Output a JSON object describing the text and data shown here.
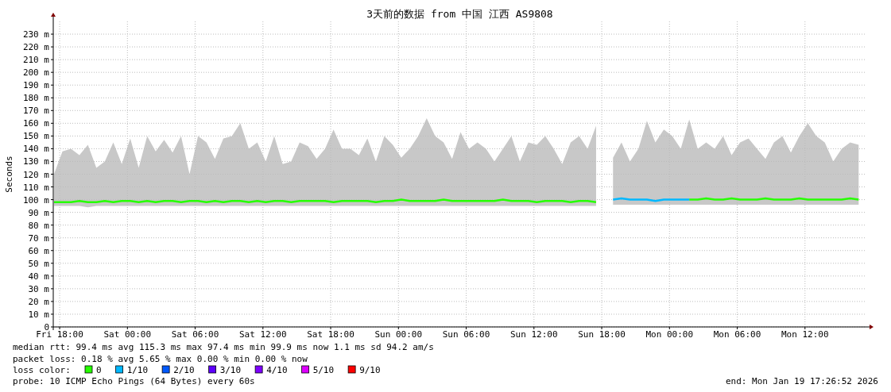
{
  "chart_data": {
    "type": "line",
    "title": "3天前的数据 from 中国 江西 AS9808",
    "ylabel": "Seconds",
    "x": [
      "2026-01-16T17:30",
      "2026-01-16T18:15",
      "2026-01-16T19:00",
      "2026-01-16T19:45",
      "2026-01-16T20:30",
      "2026-01-16T21:15",
      "2026-01-16T22:00",
      "2026-01-16T22:45",
      "2026-01-16T23:30",
      "2026-01-17T00:15",
      "2026-01-17T01:00",
      "2026-01-17T01:45",
      "2026-01-17T02:30",
      "2026-01-17T03:15",
      "2026-01-17T04:00",
      "2026-01-17T04:45",
      "2026-01-17T05:30",
      "2026-01-17T06:15",
      "2026-01-17T07:00",
      "2026-01-17T07:45",
      "2026-01-17T08:30",
      "2026-01-17T09:15",
      "2026-01-17T10:00",
      "2026-01-17T10:45",
      "2026-01-17T11:30",
      "2026-01-17T12:15",
      "2026-01-17T13:00",
      "2026-01-17T13:45",
      "2026-01-17T14:30",
      "2026-01-17T15:15",
      "2026-01-17T16:00",
      "2026-01-17T16:45",
      "2026-01-17T17:30",
      "2026-01-17T18:15",
      "2026-01-17T19:00",
      "2026-01-17T19:45",
      "2026-01-17T20:30",
      "2026-01-17T21:15",
      "2026-01-17T22:00",
      "2026-01-17T22:45",
      "2026-01-17T23:30",
      "2026-01-18T00:15",
      "2026-01-18T01:00",
      "2026-01-18T01:45",
      "2026-01-18T02:30",
      "2026-01-18T03:15",
      "2026-01-18T04:00",
      "2026-01-18T04:45",
      "2026-01-18T05:30",
      "2026-01-18T06:15",
      "2026-01-18T07:00",
      "2026-01-18T07:45",
      "2026-01-18T08:30",
      "2026-01-18T09:15",
      "2026-01-18T10:00",
      "2026-01-18T10:45",
      "2026-01-18T11:30",
      "2026-01-18T12:15",
      "2026-01-18T13:00",
      "2026-01-18T13:45",
      "2026-01-18T14:30",
      "2026-01-18T15:15",
      "2026-01-18T16:00",
      "2026-01-18T16:45",
      "2026-01-18T17:30",
      "2026-01-18T19:00",
      "2026-01-18T19:45",
      "2026-01-18T20:30",
      "2026-01-18T21:15",
      "2026-01-18T22:00",
      "2026-01-18T22:45",
      "2026-01-18T23:30",
      "2026-01-19T00:15",
      "2026-01-19T01:00",
      "2026-01-19T01:45",
      "2026-01-19T02:30",
      "2026-01-19T03:15",
      "2026-01-19T04:00",
      "2026-01-19T04:45",
      "2026-01-19T05:30",
      "2026-01-19T06:15",
      "2026-01-19T07:00",
      "2026-01-19T07:45",
      "2026-01-19T08:30",
      "2026-01-19T09:15",
      "2026-01-19T10:00",
      "2026-01-19T10:45",
      "2026-01-19T11:30",
      "2026-01-19T12:15",
      "2026-01-19T13:00",
      "2026-01-19T13:45",
      "2026-01-19T14:30",
      "2026-01-19T15:15",
      "2026-01-19T16:00",
      "2026-01-19T16:45"
    ],
    "series": [
      {
        "name": "0",
        "color": "#26ff00",
        "values": [
          98,
          98,
          98,
          99,
          98,
          98,
          99,
          98,
          99,
          99,
          98,
          99,
          98,
          99,
          99,
          98,
          99,
          99,
          98,
          99,
          98,
          99,
          99,
          98,
          99,
          98,
          99,
          99,
          98,
          99,
          99,
          99,
          99,
          98,
          99,
          99,
          99,
          99,
          98,
          99,
          99,
          100,
          99,
          99,
          99,
          99,
          100,
          99,
          99,
          99,
          99,
          99,
          99,
          100,
          99,
          99,
          99,
          98,
          99,
          99,
          99,
          98,
          99,
          99,
          98,
          null,
          null,
          null,
          null,
          null,
          null,
          null,
          null,
          null,
          100,
          100,
          101,
          100,
          100,
          101,
          100,
          100,
          100,
          101,
          100,
          100,
          100,
          101,
          100,
          100,
          100,
          100,
          100,
          101,
          100
        ],
        "lower": [
          95,
          95,
          95,
          95,
          94,
          95,
          95,
          95,
          95,
          95,
          95,
          95,
          95,
          95,
          95,
          95,
          95,
          95,
          95,
          95,
          95,
          95,
          95,
          95,
          95,
          95,
          95,
          95,
          95,
          95,
          95,
          95,
          95,
          95,
          95,
          95,
          95,
          95,
          95,
          95,
          95,
          95,
          95,
          95,
          95,
          95,
          95,
          95,
          95,
          95,
          95,
          95,
          95,
          95,
          95,
          95,
          95,
          95,
          95,
          95,
          95,
          95,
          95,
          95,
          95,
          96,
          96,
          96,
          96,
          96,
          96,
          96,
          96,
          96,
          96,
          96,
          96,
          96,
          96,
          96,
          96,
          96,
          96,
          96,
          96,
          96,
          96,
          96,
          96,
          96,
          96,
          96,
          96,
          96,
          96
        ],
        "upper": [
          120,
          138,
          140,
          135,
          143,
          125,
          130,
          145,
          128,
          148,
          125,
          150,
          138,
          147,
          137,
          150,
          120,
          150,
          145,
          132,
          148,
          150,
          160,
          140,
          145,
          130,
          150,
          128,
          130,
          145,
          142,
          132,
          140,
          155,
          140,
          140,
          135,
          148,
          130,
          150,
          143,
          133,
          140,
          150,
          164,
          150,
          145,
          132,
          153,
          140,
          145,
          140,
          130,
          140,
          150,
          130,
          145,
          143,
          150,
          140,
          128,
          145,
          150,
          140,
          158,
          133,
          145,
          130,
          140,
          162,
          145,
          155,
          150,
          140,
          163,
          140,
          145,
          140,
          150,
          135,
          145,
          148,
          140,
          132,
          145,
          150,
          137,
          150,
          160,
          150,
          145,
          130,
          140,
          145,
          143
        ]
      },
      {
        "name": "1/10",
        "color": "#00b8ff",
        "values": [
          null,
          null,
          null,
          null,
          null,
          null,
          null,
          null,
          null,
          null,
          null,
          null,
          null,
          null,
          null,
          null,
          null,
          null,
          null,
          null,
          null,
          null,
          null,
          null,
          null,
          null,
          null,
          null,
          null,
          null,
          null,
          null,
          null,
          null,
          null,
          null,
          null,
          null,
          null,
          null,
          null,
          null,
          null,
          null,
          null,
          null,
          null,
          null,
          null,
          null,
          null,
          null,
          null,
          null,
          null,
          null,
          null,
          null,
          null,
          null,
          null,
          null,
          null,
          null,
          null,
          100,
          101,
          100,
          100,
          100,
          99,
          100,
          100,
          100,
          100,
          null,
          null,
          null,
          null,
          null,
          null,
          null,
          null,
          null,
          null,
          null,
          null,
          null,
          null,
          null,
          null,
          null,
          null,
          null,
          null
        ]
      },
      {
        "name": "2/10",
        "color": "#0059ff",
        "values": [
          null,
          null,
          null,
          null,
          null,
          null,
          null,
          null,
          null,
          null,
          null,
          null,
          null,
          null,
          null,
          null,
          null,
          null,
          null,
          null,
          null,
          null,
          null,
          null,
          null,
          null,
          null,
          null,
          null,
          null,
          null,
          null,
          null,
          null,
          null,
          null,
          null,
          null,
          null,
          null,
          null,
          null,
          null,
          null,
          null,
          null,
          null,
          null,
          null,
          null,
          null,
          null,
          null,
          null,
          null,
          null,
          null,
          null,
          null,
          null,
          null,
          null,
          null,
          null,
          null,
          null,
          null,
          null,
          null,
          null,
          null,
          null,
          null,
          null,
          null,
          null,
          null,
          null,
          null,
          null,
          null,
          null,
          null,
          null,
          null,
          null,
          null,
          null,
          null,
          null,
          null,
          null,
          null,
          null,
          null
        ]
      },
      {
        "name": "3/10",
        "color": "#5e00ff",
        "values": [
          null,
          null,
          null,
          null,
          null,
          null,
          null,
          null,
          null,
          null,
          null,
          null,
          null,
          null,
          null,
          null,
          null,
          null,
          null,
          null,
          null,
          null,
          null,
          null,
          null,
          null,
          null,
          null,
          null,
          null,
          null,
          null,
          null,
          null,
          null,
          null,
          null,
          null,
          null,
          null,
          null,
          null,
          null,
          null,
          null,
          null,
          null,
          null,
          null,
          null,
          null,
          null,
          null,
          null,
          null,
          null,
          null,
          null,
          null,
          null,
          null,
          null,
          null,
          null,
          null,
          null,
          null,
          null,
          null,
          null,
          null,
          null,
          null,
          null,
          null,
          null,
          null,
          null,
          null,
          null,
          null,
          null,
          null,
          null,
          null,
          null,
          null,
          null,
          null,
          null,
          null,
          null,
          null,
          null,
          null
        ]
      },
      {
        "name": "4/10",
        "color": "#7e00ff",
        "values": [
          null,
          null,
          null,
          null,
          null,
          null,
          null,
          null,
          null,
          null,
          null,
          null,
          null,
          null,
          null,
          null,
          null,
          null,
          null,
          null,
          null,
          null,
          null,
          null,
          null,
          null,
          null,
          null,
          null,
          null,
          null,
          null,
          null,
          null,
          null,
          null,
          null,
          null,
          null,
          null,
          null,
          null,
          null,
          null,
          null,
          null,
          null,
          null,
          null,
          null,
          null,
          null,
          null,
          null,
          null,
          null,
          null,
          null,
          null,
          null,
          null,
          null,
          null,
          null,
          null,
          null,
          null,
          null,
          null,
          null,
          null,
          null,
          null,
          null,
          null,
          null,
          null,
          null,
          null,
          null,
          null,
          null,
          null,
          null,
          null,
          null,
          null,
          null,
          null,
          null,
          null,
          null,
          null,
          null,
          null
        ]
      },
      {
        "name": "5/10",
        "color": "#dd00ff",
        "values": [
          null,
          null,
          null,
          null,
          null,
          null,
          null,
          null,
          null,
          null,
          null,
          null,
          null,
          null,
          null,
          null,
          null,
          null,
          null,
          null,
          null,
          null,
          null,
          null,
          null,
          null,
          null,
          null,
          null,
          null,
          null,
          null,
          null,
          null,
          null,
          null,
          null,
          null,
          null,
          null,
          null,
          null,
          null,
          null,
          null,
          null,
          null,
          null,
          null,
          null,
          null,
          null,
          null,
          null,
          null,
          null,
          null,
          null,
          null,
          null,
          null,
          null,
          null,
          null,
          null,
          null,
          null,
          null,
          null,
          null,
          null,
          null,
          null,
          null,
          null,
          null,
          null,
          null,
          null,
          null,
          null,
          null,
          null,
          null,
          null,
          null,
          null,
          null,
          null,
          null,
          null,
          null,
          null,
          null,
          null
        ]
      },
      {
        "name": "9/10",
        "color": "#ff0000",
        "values": [
          null,
          null,
          null,
          null,
          null,
          null,
          null,
          null,
          null,
          null,
          null,
          null,
          null,
          null,
          null,
          null,
          null,
          null,
          null,
          null,
          null,
          null,
          null,
          null,
          null,
          null,
          null,
          null,
          null,
          null,
          null,
          null,
          null,
          null,
          null,
          null,
          null,
          null,
          null,
          null,
          null,
          null,
          null,
          null,
          null,
          null,
          null,
          null,
          null,
          null,
          null,
          null,
          null,
          null,
          null,
          null,
          null,
          null,
          null,
          null,
          null,
          null,
          null,
          null,
          null,
          null,
          null,
          null,
          null,
          null,
          null,
          null,
          null,
          null,
          null,
          null,
          null,
          null,
          null,
          null,
          null,
          null,
          null,
          null,
          null,
          null,
          null,
          null,
          null,
          null,
          null,
          null,
          null,
          null,
          null
        ]
      }
    ],
    "xlim": [
      "2026-01-16T17:26",
      "2026-01-19T17:26"
    ],
    "xticks": [
      {
        "value": "2026-01-16T18:00",
        "label": "Fri 18:00"
      },
      {
        "value": "2026-01-17T00:00",
        "label": "Sat 00:00"
      },
      {
        "value": "2026-01-17T06:00",
        "label": "Sat 06:00"
      },
      {
        "value": "2026-01-17T12:00",
        "label": "Sat 12:00"
      },
      {
        "value": "2026-01-17T18:00",
        "label": "Sat 18:00"
      },
      {
        "value": "2026-01-18T00:00",
        "label": "Sun 00:00"
      },
      {
        "value": "2026-01-18T06:00",
        "label": "Sun 06:00"
      },
      {
        "value": "2026-01-18T12:00",
        "label": "Sun 12:00"
      },
      {
        "value": "2026-01-18T18:00",
        "label": "Sun 18:00"
      },
      {
        "value": "2026-01-19T00:00",
        "label": "Mon 00:00"
      },
      {
        "value": "2026-01-19T06:00",
        "label": "Mon 06:00"
      },
      {
        "value": "2026-01-19T12:00",
        "label": "Mon 12:00"
      }
    ],
    "ylim": [
      0,
      240
    ],
    "yticks": [
      0,
      {
        "value": 10,
        "label": "10 m"
      },
      {
        "value": 20,
        "label": "20 m"
      },
      {
        "value": 30,
        "label": "30 m"
      },
      {
        "value": 40,
        "label": "40 m"
      },
      {
        "value": 50,
        "label": "50 m"
      },
      {
        "value": 60,
        "label": "60 m"
      },
      {
        "value": 70,
        "label": "70 m"
      },
      {
        "value": 80,
        "label": "80 m"
      },
      {
        "value": 90,
        "label": "90 m"
      },
      {
        "value": 100,
        "label": "100 m"
      },
      {
        "value": 110,
        "label": "110 m"
      },
      {
        "value": 120,
        "label": "120 m"
      },
      {
        "value": 130,
        "label": "130 m"
      },
      {
        "value": 140,
        "label": "140 m"
      },
      {
        "value": 150,
        "label": "150 m"
      },
      {
        "value": 160,
        "label": "160 m"
      },
      {
        "value": 170,
        "label": "170 m"
      },
      {
        "value": 180,
        "label": "180 m"
      },
      {
        "value": 190,
        "label": "190 m"
      },
      {
        "value": 200,
        "label": "200 m"
      },
      {
        "value": 210,
        "label": "210 m"
      },
      {
        "value": 220,
        "label": "220 m"
      },
      {
        "value": 230,
        "label": "230 m"
      }
    ],
    "grid": true,
    "legend": "bottom",
    "legend_title": "loss color:",
    "marker": "none",
    "line_style": "solid",
    "annotations": [
      "median rtt:  99.4 ms avg  115.3 ms max  97.4 ms min  99.9 ms now  1.1 ms sd  94.2   am/s",
      "packet loss: 0.18 % avg  5.65 % max  0.00 % min  0.00 % now",
      "probe:       10 ICMP Echo Pings (64 Bytes) every 60s",
      "end: Mon Jan 19 17:26:52 2026"
    ]
  }
}
